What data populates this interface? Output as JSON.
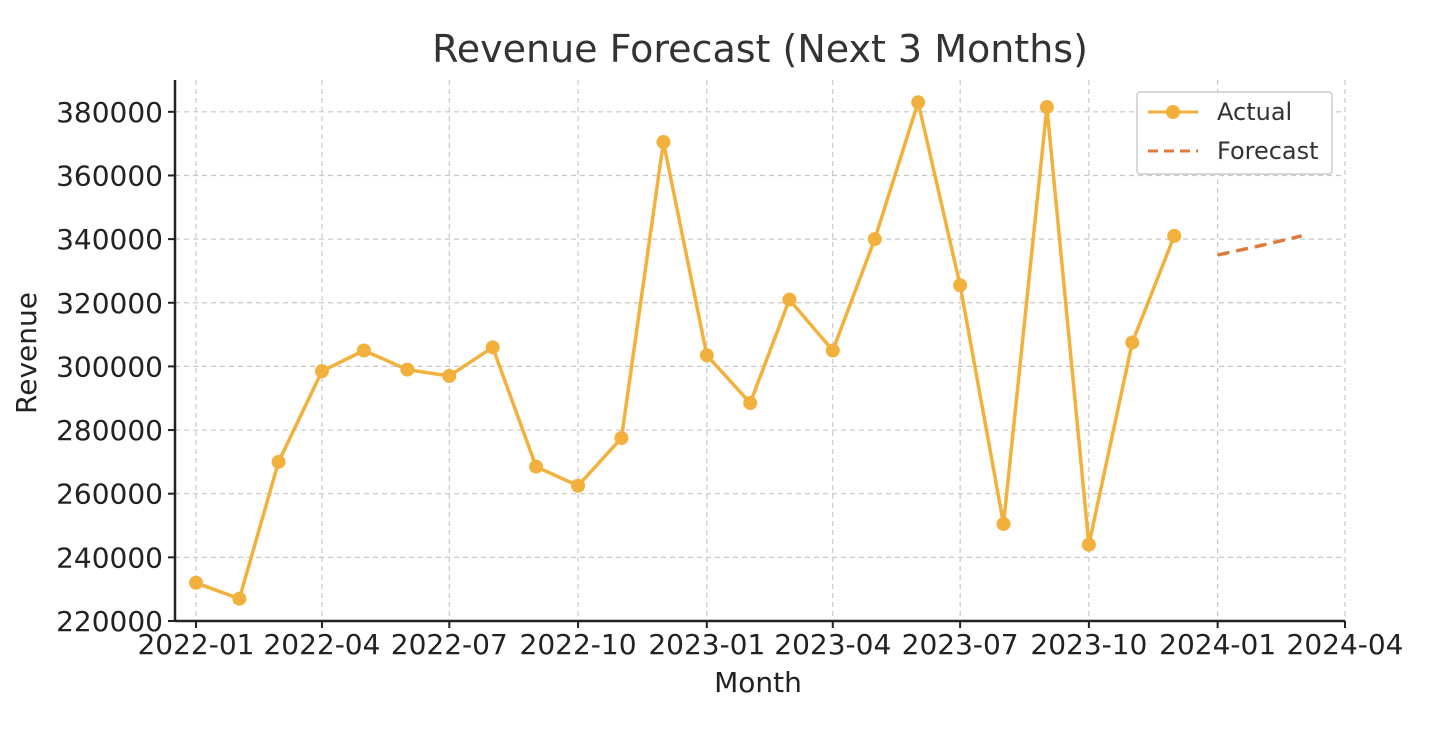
{
  "chart_data": {
    "type": "line",
    "title": "Revenue Forecast (Next 3 Months)",
    "xlabel": "Month",
    "ylabel": "Revenue",
    "ylim": [
      220000,
      390000
    ],
    "xlim": [
      "2021-12-17",
      "2024-04-01"
    ],
    "yticks": [
      220000,
      240000,
      260000,
      280000,
      300000,
      320000,
      340000,
      360000,
      380000
    ],
    "xticks": [
      "2022-01",
      "2022-04",
      "2022-07",
      "2022-10",
      "2023-01",
      "2023-04",
      "2023-07",
      "2023-10",
      "2024-01",
      "2024-04"
    ],
    "grid": true,
    "legend_position": "top-right",
    "series": [
      {
        "name": "Actual",
        "style": "solid-markers",
        "color": "#f2b13c",
        "x": [
          "2022-01",
          "2022-02",
          "2022-03",
          "2022-04",
          "2022-05",
          "2022-06",
          "2022-07",
          "2022-08",
          "2022-09",
          "2022-10",
          "2022-11",
          "2022-12",
          "2023-01",
          "2023-02",
          "2023-03",
          "2023-04",
          "2023-05",
          "2023-06",
          "2023-07",
          "2023-08",
          "2023-09",
          "2023-10",
          "2023-11",
          "2023-12"
        ],
        "values": [
          232000,
          227000,
          270000,
          298500,
          305000,
          299000,
          297000,
          306000,
          268500,
          262500,
          277500,
          370500,
          303500,
          288500,
          321000,
          305000,
          340000,
          383000,
          325500,
          250500,
          381500,
          244000,
          307500,
          341000
        ]
      },
      {
        "name": "Forecast",
        "style": "dashed",
        "color": "#e07a3a",
        "x": [
          "2024-01",
          "2024-02",
          "2024-03"
        ],
        "values": [
          335000,
          338000,
          341000
        ]
      }
    ]
  }
}
